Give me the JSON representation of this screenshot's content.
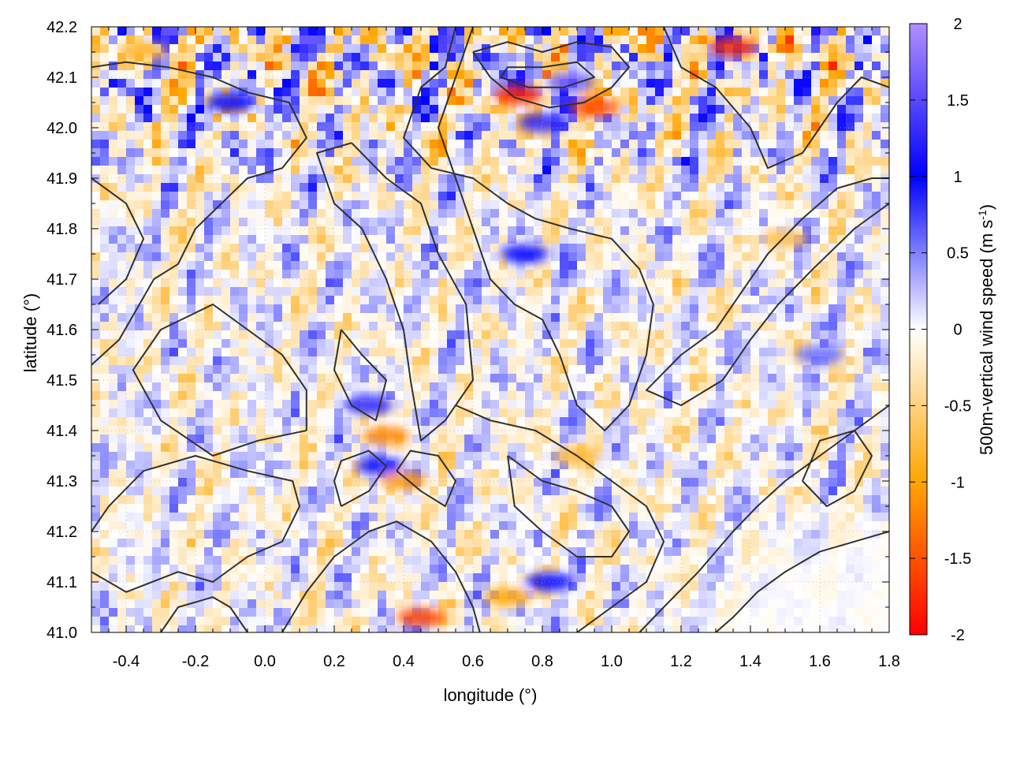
{
  "chart_data": {
    "type": "heatmap",
    "xlabel": "longitude (°)",
    "ylabel": "latitude (°)",
    "colorbar_label_main": "500m-vertical wind speed (m s",
    "colorbar_label_sup": "-1",
    "colorbar_label_close": ")",
    "xlim": [
      -0.5,
      1.8
    ],
    "ylim": [
      41.0,
      42.2
    ],
    "x_ticks": [
      -0.4,
      -0.2,
      0.0,
      0.2,
      0.4,
      0.6,
      0.8,
      1.0,
      1.2,
      1.4,
      1.6,
      1.8
    ],
    "x_tick_labels": [
      "-0.4",
      "-0.2",
      "0.0",
      "0.2",
      "0.4",
      "0.6",
      "0.8",
      "1.0",
      "1.2",
      "1.4",
      "1.6",
      "1.8"
    ],
    "y_ticks": [
      41.0,
      41.1,
      41.2,
      41.3,
      41.4,
      41.5,
      41.6,
      41.7,
      41.8,
      41.9,
      42.0,
      42.1,
      42.2
    ],
    "y_tick_labels": [
      "41.0",
      "41.1",
      "41.2",
      "41.3",
      "41.4",
      "41.5",
      "41.6",
      "41.7",
      "41.8",
      "41.9",
      "42.0",
      "42.1",
      "42.2"
    ],
    "colorbar_range": [
      -2,
      2
    ],
    "colorbar_ticks": [
      2,
      1.5,
      1,
      0.5,
      0,
      -0.5,
      -1,
      -1.5,
      -2
    ],
    "colorbar_tick_labels": [
      "2",
      "1.5",
      "1",
      "0.5",
      "0",
      "-0.5",
      "-1",
      "-1.5",
      "-2"
    ],
    "colormap": [
      {
        "v": -2.0,
        "color": "#ff0000"
      },
      {
        "v": -1.0,
        "color": "#ffa500"
      },
      {
        "v": 0.0,
        "color": "#ffffff"
      },
      {
        "v": 1.0,
        "color": "#0000ff"
      },
      {
        "v": 2.0,
        "color": "#b090ff"
      }
    ],
    "grid": true,
    "grid_style": "dotted",
    "contour_color": "#303030",
    "hotspots": [
      {
        "lon": 0.73,
        "lat": 42.065,
        "value": -1.8
      },
      {
        "lon": 0.95,
        "lat": 42.04,
        "value": -1.6
      },
      {
        "lon": 1.35,
        "lat": 42.16,
        "value": -1.7
      },
      {
        "lon": 0.88,
        "lat": 42.09,
        "value": 1.6
      },
      {
        "lon": 0.8,
        "lat": 42.01,
        "value": 1.2
      },
      {
        "lon": 0.45,
        "lat": 41.03,
        "value": -1.6
      },
      {
        "lon": 0.4,
        "lat": 41.3,
        "value": -1.1
      },
      {
        "lon": 0.35,
        "lat": 41.39,
        "value": -1.2
      },
      {
        "lon": 0.3,
        "lat": 41.45,
        "value": 1.2
      },
      {
        "lon": 0.33,
        "lat": 41.33,
        "value": 1.1
      },
      {
        "lon": 0.82,
        "lat": 41.1,
        "value": 1.0
      },
      {
        "lon": 0.7,
        "lat": 41.07,
        "value": -1.0
      },
      {
        "lon": 0.75,
        "lat": 41.75,
        "value": 1.0
      },
      {
        "lon": 0.9,
        "lat": 41.35,
        "value": -0.8
      },
      {
        "lon": -0.1,
        "lat": 42.05,
        "value": 1.0
      },
      {
        "lon": -0.35,
        "lat": 42.15,
        "value": -0.8
      },
      {
        "lon": 1.5,
        "lat": 41.78,
        "value": -0.7
      },
      {
        "lon": 1.6,
        "lat": 41.55,
        "value": 0.6
      }
    ],
    "contours": [
      [
        [
          -0.5,
          41.53
        ],
        [
          -0.42,
          41.58
        ],
        [
          -0.32,
          41.7
        ],
        [
          -0.25,
          41.73
        ],
        [
          -0.2,
          41.8
        ],
        [
          -0.05,
          41.9
        ],
        [
          0.05,
          41.92
        ],
        [
          0.12,
          41.98
        ],
        [
          0.07,
          42.05
        ],
        [
          -0.05,
          42.07
        ],
        [
          -0.15,
          42.1
        ],
        [
          -0.28,
          42.12
        ],
        [
          -0.4,
          42.13
        ],
        [
          -0.5,
          42.12
        ]
      ],
      [
        [
          -0.5,
          41.12
        ],
        [
          -0.4,
          41.08
        ],
        [
          -0.25,
          41.12
        ],
        [
          -0.15,
          41.1
        ],
        [
          -0.05,
          41.15
        ],
        [
          0.05,
          41.18
        ],
        [
          0.1,
          41.25
        ],
        [
          0.08,
          41.3
        ],
        [
          -0.05,
          41.32
        ],
        [
          -0.2,
          41.35
        ],
        [
          -0.35,
          41.32
        ],
        [
          -0.45,
          41.25
        ],
        [
          -0.5,
          41.2
        ]
      ],
      [
        [
          0.12,
          41.4
        ],
        [
          -0.02,
          41.38
        ],
        [
          -0.15,
          41.35
        ],
        [
          -0.3,
          41.42
        ],
        [
          -0.38,
          41.52
        ],
        [
          -0.3,
          41.6
        ],
        [
          -0.15,
          41.65
        ],
        [
          -0.05,
          41.6
        ],
        [
          0.05,
          41.55
        ],
        [
          0.12,
          41.48
        ],
        [
          0.12,
          41.4
        ]
      ],
      [
        [
          0.25,
          41.97
        ],
        [
          0.35,
          41.9
        ],
        [
          0.45,
          41.85
        ],
        [
          0.5,
          41.75
        ],
        [
          0.58,
          41.65
        ],
        [
          0.6,
          41.5
        ],
        [
          0.52,
          41.42
        ],
        [
          0.45,
          41.38
        ],
        [
          0.42,
          41.5
        ],
        [
          0.4,
          41.6
        ],
        [
          0.35,
          41.7
        ],
        [
          0.28,
          41.8
        ],
        [
          0.2,
          41.85
        ],
        [
          0.15,
          41.95
        ],
        [
          0.25,
          41.97
        ]
      ],
      [
        [
          0.55,
          42.2
        ],
        [
          0.52,
          42.12
        ],
        [
          0.45,
          42.08
        ],
        [
          0.4,
          41.98
        ],
        [
          0.48,
          41.92
        ],
        [
          0.6,
          41.9
        ],
        [
          0.7,
          41.85
        ],
        [
          0.78,
          41.82
        ],
        [
          0.88,
          41.8
        ],
        [
          1.0,
          41.78
        ],
        [
          1.08,
          41.72
        ],
        [
          1.12,
          41.65
        ],
        [
          1.1,
          41.55
        ],
        [
          1.05,
          41.45
        ],
        [
          0.98,
          41.4
        ],
        [
          0.9,
          41.45
        ],
        [
          0.85,
          41.55
        ],
        [
          0.8,
          41.62
        ],
        [
          0.72,
          41.65
        ],
        [
          0.65,
          41.7
        ],
        [
          0.6,
          41.8
        ],
        [
          0.55,
          41.9
        ],
        [
          0.5,
          42.0
        ],
        [
          0.55,
          42.1
        ],
        [
          0.6,
          42.2
        ]
      ],
      [
        [
          0.6,
          42.15
        ],
        [
          0.65,
          42.1
        ],
        [
          0.72,
          42.06
        ],
        [
          0.82,
          42.04
        ],
        [
          0.92,
          42.05
        ],
        [
          1.0,
          42.08
        ],
        [
          1.05,
          42.12
        ],
        [
          1.0,
          42.16
        ],
        [
          0.9,
          42.17
        ],
        [
          0.8,
          42.15
        ],
        [
          0.7,
          42.17
        ],
        [
          0.6,
          42.15
        ]
      ],
      [
        [
          0.68,
          42.1
        ],
        [
          0.76,
          42.08
        ],
        [
          0.86,
          42.08
        ],
        [
          0.95,
          42.1
        ],
        [
          0.9,
          42.13
        ],
        [
          0.8,
          42.12
        ],
        [
          0.7,
          42.12
        ],
        [
          0.68,
          42.1
        ]
      ],
      [
        [
          1.15,
          42.2
        ],
        [
          1.2,
          42.12
        ],
        [
          1.3,
          42.08
        ],
        [
          1.4,
          42.0
        ],
        [
          1.45,
          41.92
        ],
        [
          1.55,
          41.95
        ],
        [
          1.65,
          42.05
        ],
        [
          1.72,
          42.1
        ],
        [
          1.8,
          42.08
        ]
      ],
      [
        [
          1.8,
          41.85
        ],
        [
          1.7,
          41.8
        ],
        [
          1.58,
          41.72
        ],
        [
          1.48,
          41.65
        ],
        [
          1.4,
          41.58
        ],
        [
          1.32,
          41.5
        ],
        [
          1.2,
          41.45
        ],
        [
          1.1,
          41.48
        ],
        [
          1.2,
          41.55
        ],
        [
          1.3,
          41.6
        ],
        [
          1.38,
          41.68
        ],
        [
          1.45,
          41.75
        ],
        [
          1.55,
          41.82
        ],
        [
          1.65,
          41.88
        ],
        [
          1.75,
          41.9
        ],
        [
          1.8,
          41.9
        ]
      ],
      [
        [
          1.8,
          41.45
        ],
        [
          1.7,
          41.4
        ],
        [
          1.6,
          41.35
        ],
        [
          1.5,
          41.3
        ],
        [
          1.42,
          41.25
        ],
        [
          1.35,
          41.2
        ],
        [
          1.25,
          41.12
        ],
        [
          1.15,
          41.05
        ],
        [
          1.08,
          41.0
        ]
      ],
      [
        [
          1.8,
          41.2
        ],
        [
          1.7,
          41.18
        ],
        [
          1.6,
          41.16
        ],
        [
          1.5,
          41.12
        ],
        [
          1.42,
          41.08
        ],
        [
          1.35,
          41.03
        ],
        [
          1.3,
          41.0
        ]
      ],
      [
        [
          0.05,
          41.0
        ],
        [
          0.12,
          41.08
        ],
        [
          0.2,
          41.15
        ],
        [
          0.3,
          41.2
        ],
        [
          0.38,
          41.22
        ],
        [
          0.48,
          41.18
        ],
        [
          0.55,
          41.12
        ],
        [
          0.6,
          41.05
        ],
        [
          0.62,
          41.0
        ]
      ],
      [
        [
          0.55,
          41.45
        ],
        [
          0.65,
          41.42
        ],
        [
          0.78,
          41.4
        ],
        [
          0.9,
          41.35
        ],
        [
          1.0,
          41.3
        ],
        [
          1.1,
          41.25
        ],
        [
          1.15,
          41.18
        ],
        [
          1.1,
          41.1
        ],
        [
          1.0,
          41.05
        ],
        [
          0.9,
          41.0
        ]
      ],
      [
        [
          0.7,
          41.35
        ],
        [
          0.8,
          41.3
        ],
        [
          0.9,
          41.28
        ],
        [
          1.0,
          41.25
        ],
        [
          1.05,
          41.2
        ],
        [
          1.0,
          41.15
        ],
        [
          0.9,
          41.15
        ],
        [
          0.8,
          41.2
        ],
        [
          0.72,
          41.25
        ],
        [
          0.7,
          41.35
        ]
      ],
      [
        [
          0.38,
          41.32
        ],
        [
          0.45,
          41.28
        ],
        [
          0.52,
          41.25
        ],
        [
          0.55,
          41.3
        ],
        [
          0.5,
          41.35
        ],
        [
          0.42,
          41.36
        ],
        [
          0.38,
          41.32
        ]
      ],
      [
        [
          0.22,
          41.25
        ],
        [
          0.3,
          41.28
        ],
        [
          0.35,
          41.33
        ],
        [
          0.3,
          41.36
        ],
        [
          0.22,
          41.34
        ],
        [
          0.2,
          41.3
        ],
        [
          0.22,
          41.25
        ]
      ],
      [
        [
          -0.3,
          41.0
        ],
        [
          -0.25,
          41.05
        ],
        [
          -0.15,
          41.07
        ],
        [
          -0.1,
          41.05
        ],
        [
          -0.05,
          41.0
        ]
      ],
      [
        [
          -0.5,
          41.9
        ],
        [
          -0.4,
          41.85
        ],
        [
          -0.35,
          41.78
        ],
        [
          -0.4,
          41.7
        ],
        [
          -0.48,
          41.65
        ]
      ],
      [
        [
          0.22,
          41.6
        ],
        [
          0.28,
          41.55
        ],
        [
          0.35,
          41.5
        ],
        [
          0.32,
          41.42
        ],
        [
          0.25,
          41.45
        ],
        [
          0.2,
          41.52
        ],
        [
          0.22,
          41.6
        ]
      ],
      [
        [
          1.55,
          41.3
        ],
        [
          1.62,
          41.25
        ],
        [
          1.7,
          41.28
        ],
        [
          1.75,
          41.35
        ],
        [
          1.7,
          41.4
        ],
        [
          1.6,
          41.38
        ],
        [
          1.55,
          41.3
        ]
      ]
    ]
  }
}
